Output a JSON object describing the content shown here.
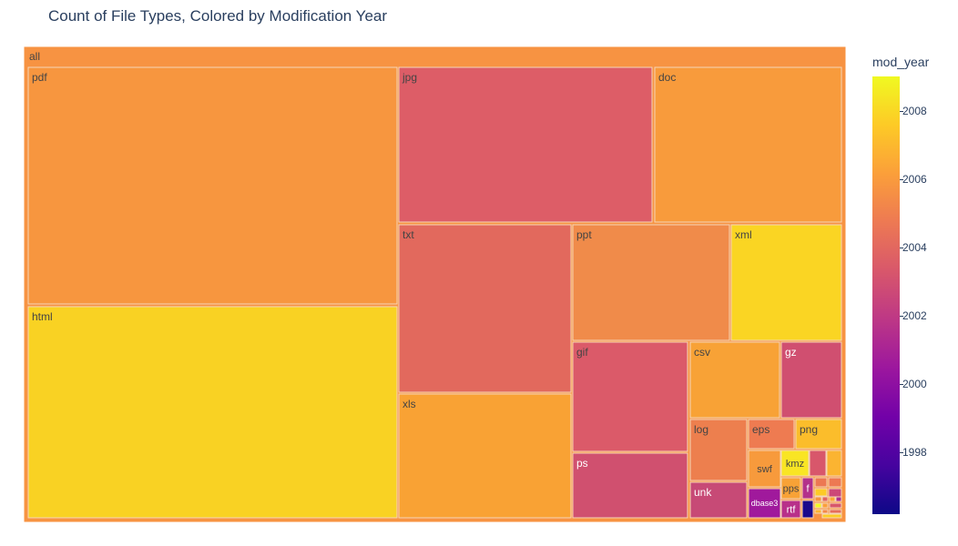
{
  "chart_data": {
    "type": "treemap",
    "title": "Count of File Types, Colored by Modification Year",
    "root": "all",
    "root_color": "#f79342",
    "colorbar": {
      "title": "mod_year",
      "ticks": [
        "2008",
        "2006",
        "2004",
        "2002",
        "2000",
        "1998"
      ],
      "range": [
        1996.2,
        2009
      ]
    },
    "nodes": [
      {
        "label": "pdf",
        "color": "#f7963f"
      },
      {
        "label": "html",
        "color": "#f9d223"
      },
      {
        "label": "jpg",
        "color": "#dd5d67"
      },
      {
        "label": "doc",
        "color": "#f89b3c"
      },
      {
        "label": "txt",
        "color": "#e2695d"
      },
      {
        "label": "xls",
        "color": "#f9a234"
      },
      {
        "label": "ppt",
        "color": "#f08b4a"
      },
      {
        "label": "xml",
        "color": "#fad523"
      },
      {
        "label": "gif",
        "color": "#db5a69"
      },
      {
        "label": "ps",
        "color": "#d0506f"
      },
      {
        "label": "csv",
        "color": "#f8a236"
      },
      {
        "label": "gz",
        "color": "#d04f70"
      },
      {
        "label": "log",
        "color": "#ed7f4e"
      },
      {
        "label": "eps",
        "color": "#ee7b51"
      },
      {
        "label": "png",
        "color": "#fbbd2b"
      },
      {
        "label": "swf",
        "color": "#f79a3c"
      },
      {
        "label": "kmz",
        "color": "#f9e524"
      },
      {
        "label": "unk",
        "color": "#c74a76"
      },
      {
        "label": "dbase3",
        "color": "#a0199c"
      },
      {
        "label": "pps",
        "color": "#f8a236"
      },
      {
        "label": "f",
        "color": "#b3318b"
      },
      {
        "label": "rtf",
        "color": "#b8308a"
      },
      {
        "label": "",
        "color": "#1a0a8c"
      },
      {
        "label": "",
        "color": "#d8576b"
      },
      {
        "label": "",
        "color": "#fbb431"
      },
      {
        "label": "",
        "color": "#ec7853"
      },
      {
        "label": "",
        "color": "#ed7953"
      },
      {
        "label": "",
        "color": "#fdca26"
      },
      {
        "label": "",
        "color": "#cc4778"
      },
      {
        "label": "",
        "color": "#f7943f"
      },
      {
        "label": "",
        "color": "#e16462"
      },
      {
        "label": "",
        "color": "#fca636"
      },
      {
        "label": "",
        "color": "#b12a90"
      },
      {
        "label": "",
        "color": "#f0f921"
      },
      {
        "label": "",
        "color": "#fb9f3a"
      },
      {
        "label": "",
        "color": "#d8576b"
      },
      {
        "label": "",
        "color": "#fdb42f"
      },
      {
        "label": "",
        "color": "#f48849"
      },
      {
        "label": "",
        "color": "#e66c5c"
      },
      {
        "label": "",
        "color": "#fccd25"
      }
    ]
  }
}
